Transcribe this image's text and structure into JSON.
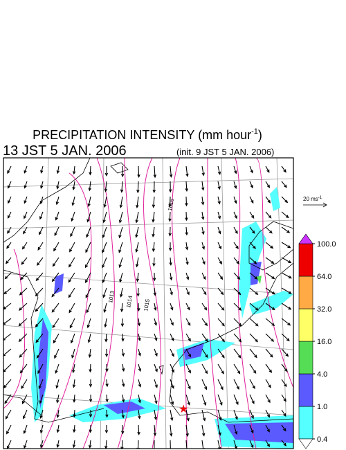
{
  "header": {
    "title": "PRECIPITATION INTENSITY (mm hour",
    "title_exponent": "-1",
    "title_end": ")",
    "valid_time": "13 JST 5 JAN. 2006",
    "init_time": "(init. 9 JST 5 JAN. 2006)"
  },
  "map": {
    "isobar_labels": [
      "1013",
      "1014",
      "1015",
      "1016"
    ],
    "wind_scale": {
      "label": "20 ms",
      "exponent": "-1"
    }
  },
  "colorbar": {
    "levels": [
      {
        "value": 0.4,
        "label": "0.4"
      },
      {
        "value": 1,
        "label": "1.0"
      },
      {
        "value": 4,
        "label": "4.0"
      },
      {
        "value": 16,
        "label": "16.0"
      },
      {
        "value": 32,
        "label": "32.0"
      },
      {
        "value": 64,
        "label": "64.0"
      },
      {
        "value": 100,
        "label": "100.0"
      }
    ],
    "colors": [
      "#ffffff",
      "#55ffff",
      "#5a5aff",
      "#55dd55",
      "#ffff66",
      "#ffaa44",
      "#ee0000",
      "#cc33ff"
    ]
  }
}
